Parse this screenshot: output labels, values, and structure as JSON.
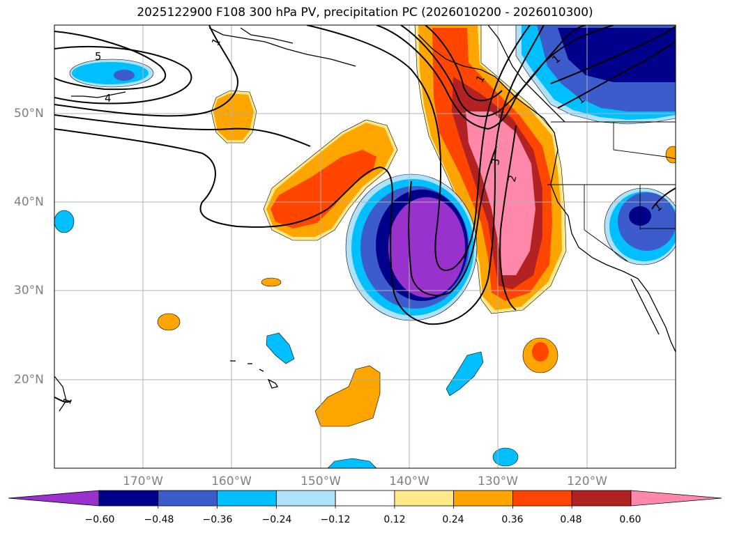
{
  "title": "2025122900 F108 300 hPa PV, precipitation PC (2026010200 - 2026010300)",
  "map": {
    "lat_labels": [
      "50°N",
      "40°N",
      "30°N",
      "20°N"
    ],
    "lon_labels": [
      "170°W",
      "160°W",
      "150°W",
      "140°W",
      "130°W",
      "120°W"
    ],
    "contour_labels": [
      "5",
      "4",
      "3",
      "2",
      "1",
      "1",
      "1",
      "1",
      "1",
      "1"
    ]
  },
  "colorbar": {
    "ticks": [
      "−0.60",
      "−0.48",
      "−0.36",
      "−0.24",
      "−0.12",
      "0.12",
      "0.24",
      "0.36",
      "0.48",
      "0.60"
    ],
    "colors": [
      "#9932cc",
      "#00008b",
      "#3c5ccc",
      "#00bfff",
      "#aee2fb",
      "#ffffff",
      "#fde98a",
      "#ffa500",
      "#ff4500",
      "#b22222",
      "#ff88aa"
    ]
  }
}
